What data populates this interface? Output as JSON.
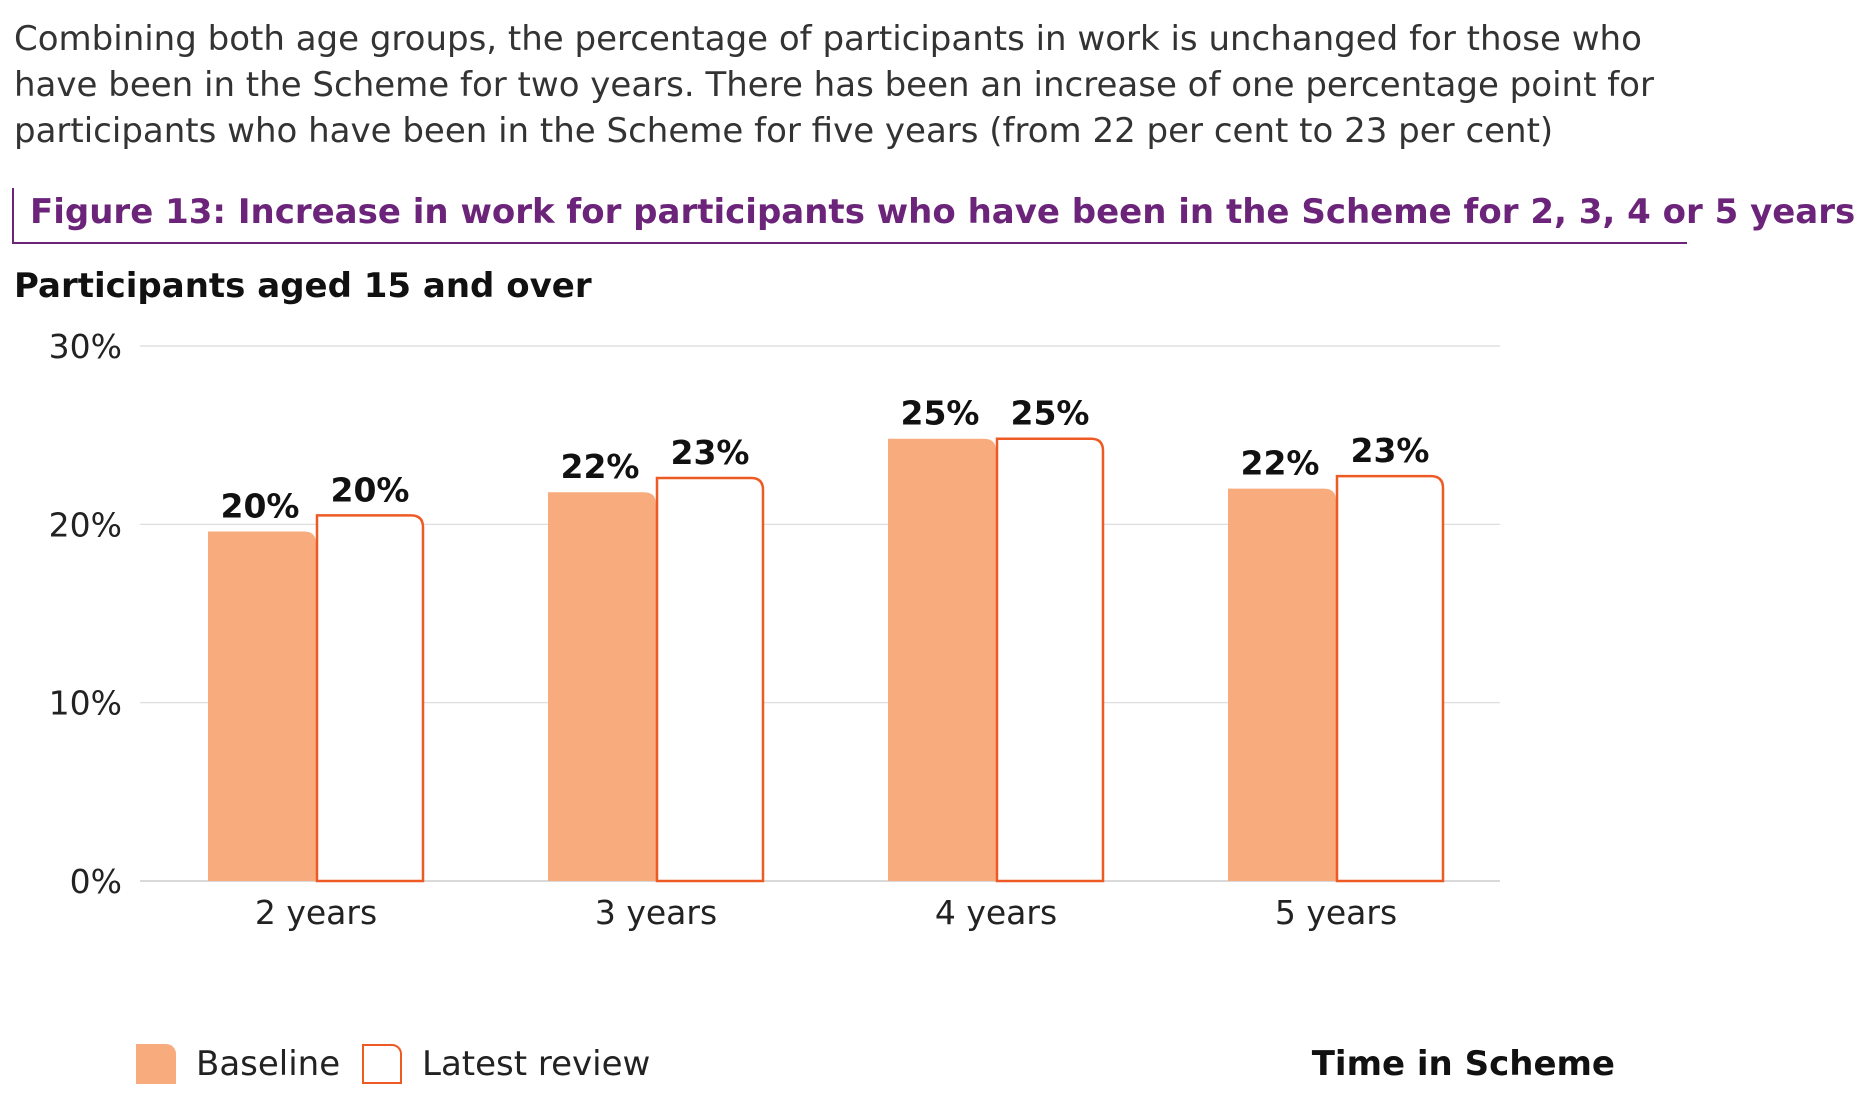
{
  "intro_text": "Combining both age groups, the percentage of participants in work is unchanged for those who have been in the Scheme for two years. There has been an increase of one percentage point for participants who have been in the Scheme for five years (from 22 per cent to 23 per cent)",
  "figure_title": "Figure 13: Increase in work for participants who have been in the Scheme for 2, 3, 4 or 5 years",
  "colors": {
    "title_purple": "#6b2479",
    "baseline_fill": "#f8ab7c",
    "latest_stroke": "#ee5a24",
    "grid": "#d9d9d9"
  },
  "chart_data": {
    "type": "bar",
    "title": "Participants aged 15 and over",
    "xlabel": "Time in Scheme",
    "ylabel": "",
    "categories": [
      "2 years",
      "3 years",
      "4 years",
      "5 years"
    ],
    "series": [
      {
        "name": "Baseline",
        "values": [
          19.6,
          21.8,
          24.8,
          22.0
        ],
        "labels": [
          "20%",
          "22%",
          "25%",
          "22%"
        ]
      },
      {
        "name": "Latest review",
        "values": [
          20.5,
          22.6,
          24.8,
          22.7
        ],
        "labels": [
          "20%",
          "23%",
          "25%",
          "23%"
        ]
      }
    ],
    "ylim": [
      0,
      30
    ],
    "yticks": [
      0,
      10,
      20,
      30
    ],
    "ytick_labels": [
      "0%",
      "10%",
      "20%",
      "30%"
    ],
    "grid": true,
    "legend": "bottom-left"
  }
}
